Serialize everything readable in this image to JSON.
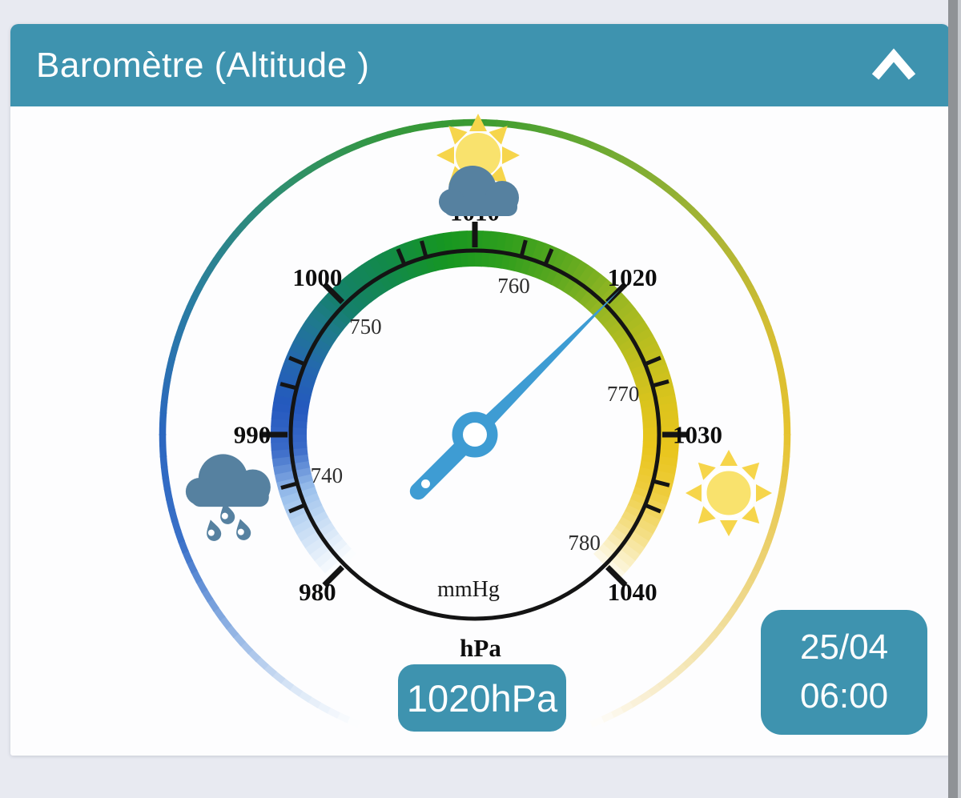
{
  "page": {
    "background": "#e8eaf1",
    "scrollbar_color": "#8f9296",
    "scrollbar_edge_color": "#c5c8cd",
    "card_background": "#fdfdfe"
  },
  "header": {
    "title": "Baromètre (Altitude )",
    "background": "#3e93af",
    "text_color": "#ffffff",
    "collapse_icon": "chevron-up"
  },
  "gauge": {
    "value_hpa": 1020,
    "hpa": {
      "min": 980,
      "max": 1040,
      "major_step": 10,
      "start_angle": -135,
      "end_angle": 135,
      "unit": "hPa"
    },
    "mmhg": {
      "unit": "mmHg",
      "hpa_per_mmhg": 1.333224,
      "label_values": [
        740,
        750,
        760,
        770,
        780
      ],
      "tick_values": [
        740,
        745,
        755,
        760,
        770,
        775
      ]
    },
    "needle_color": "#3e9cd3",
    "tick_color": "#141414",
    "hpa_label_color": "#0d0d0d",
    "mmhg_label_color": "#2e2e2e",
    "band_stops": [
      [
        980,
        "#ffffff"
      ],
      [
        983,
        "#cfe2f6"
      ],
      [
        986,
        "#9bc0ec"
      ],
      [
        989,
        "#3a6ac8"
      ],
      [
        992,
        "#2459be"
      ],
      [
        995,
        "#2468ae"
      ],
      [
        998,
        "#1e7a8b"
      ],
      [
        1000,
        "#15806b"
      ],
      [
        1004,
        "#128a49"
      ],
      [
        1008,
        "#169621"
      ],
      [
        1012,
        "#2f9e1d"
      ],
      [
        1016,
        "#5ba81f"
      ],
      [
        1020,
        "#96b723"
      ],
      [
        1024,
        "#bcbe1f"
      ],
      [
        1028,
        "#dcc41d"
      ],
      [
        1031,
        "#e9c51c"
      ],
      [
        1034,
        "#eecd3e"
      ],
      [
        1037,
        "#f5e089"
      ],
      [
        1040,
        "#fdf9ec"
      ]
    ],
    "ring_stops": [
      [
        -158,
        "#ffffff"
      ],
      [
        -145,
        "#dce8f7"
      ],
      [
        -128,
        "#8fb2e3"
      ],
      [
        -110,
        "#3a70c8"
      ],
      [
        -90,
        "#2b66c0"
      ],
      [
        -65,
        "#2a7da2"
      ],
      [
        -40,
        "#2e8e72"
      ],
      [
        -15,
        "#35983c"
      ],
      [
        0,
        "#3a9b31"
      ],
      [
        20,
        "#64a832"
      ],
      [
        45,
        "#9fb334"
      ],
      [
        70,
        "#d3bd33"
      ],
      [
        90,
        "#e6c32f"
      ],
      [
        115,
        "#ecd277"
      ],
      [
        135,
        "#f3e4ae"
      ],
      [
        150,
        "#faf2dc"
      ],
      [
        158,
        "#ffffff"
      ]
    ],
    "icons": [
      {
        "name": "sun-cloud-icon",
        "meaning": "partly cloudy",
        "position": "top"
      },
      {
        "name": "rain-cloud-icon",
        "meaning": "rain",
        "position": "left"
      },
      {
        "name": "sun-icon",
        "meaning": "sunny",
        "position": "right"
      }
    ],
    "icon_colors": {
      "sun_rays": "#f6d54b",
      "sun_disc": "#f9e26d",
      "cloud": "#5681a0"
    }
  },
  "value_badge": {
    "label": "1020hPa",
    "background": "#3e93af",
    "text_color": "#ffffff"
  },
  "datetime_badge": {
    "date": "25/04",
    "time": "06:00",
    "background": "#3e93af",
    "text_color": "#ffffff"
  }
}
